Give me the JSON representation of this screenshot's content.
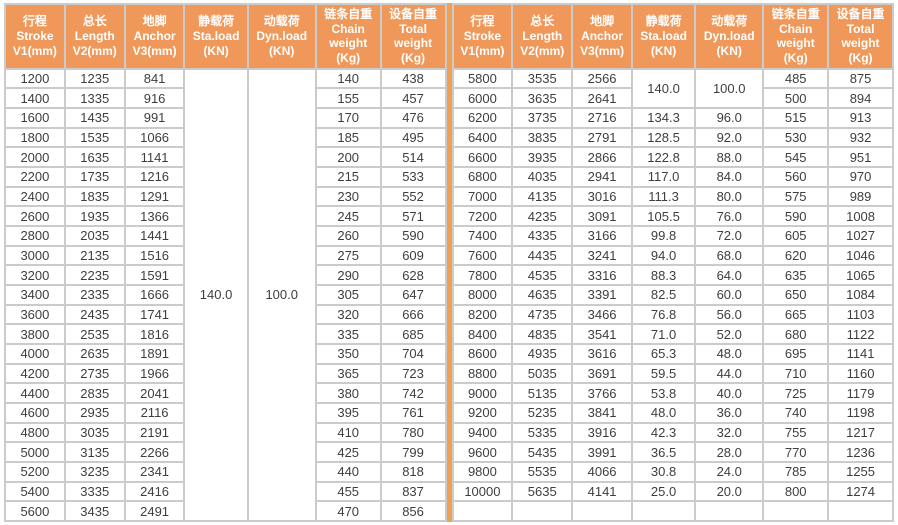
{
  "colors": {
    "header_bg": "#F0985A",
    "header_text": "#FFFFFF",
    "grid": "#CBCBCB",
    "cell_bg": "#FFFFFF",
    "divider": "#F0A052",
    "data_text": "#3E3E3E",
    "page_bg": "#FFFFFF"
  },
  "table": {
    "columns": [
      {
        "key": "stroke",
        "lines": [
          "行程",
          "Stroke",
          "V1(mm)"
        ]
      },
      {
        "key": "length",
        "lines": [
          "总长",
          "Length",
          "V2(mm)"
        ]
      },
      {
        "key": "anchor",
        "lines": [
          "地脚",
          "Anchor",
          "V3(mm)"
        ]
      },
      {
        "key": "sta_load",
        "lines": [
          "静载荷",
          "Sta.load",
          "(KN)"
        ]
      },
      {
        "key": "dyn_load",
        "lines": [
          "动载荷",
          "Dyn.load",
          "(KN)"
        ]
      },
      {
        "key": "chain_weight",
        "lines": [
          "链条自重",
          "Chain",
          "weight",
          "(Kg)"
        ]
      },
      {
        "key": "total_weight",
        "lines": [
          "设备自重",
          "Total",
          "weight",
          "(Kg)"
        ]
      }
    ],
    "left": {
      "merged_sta_load": "140.0",
      "merged_dyn_load": "100.0",
      "rows": [
        [
          "1200",
          "1235",
          "841",
          "140",
          "438"
        ],
        [
          "1400",
          "1335",
          "916",
          "155",
          "457"
        ],
        [
          "1600",
          "1435",
          "991",
          "170",
          "476"
        ],
        [
          "1800",
          "1535",
          "1066",
          "185",
          "495"
        ],
        [
          "2000",
          "1635",
          "1141",
          "200",
          "514"
        ],
        [
          "2200",
          "1735",
          "1216",
          "215",
          "533"
        ],
        [
          "2400",
          "1835",
          "1291",
          "230",
          "552"
        ],
        [
          "2600",
          "1935",
          "1366",
          "245",
          "571"
        ],
        [
          "2800",
          "2035",
          "1441",
          "260",
          "590"
        ],
        [
          "3000",
          "2135",
          "1516",
          "275",
          "609"
        ],
        [
          "3200",
          "2235",
          "1591",
          "290",
          "628"
        ],
        [
          "3400",
          "2335",
          "1666",
          "305",
          "647"
        ],
        [
          "3600",
          "2435",
          "1741",
          "320",
          "666"
        ],
        [
          "3800",
          "2535",
          "1816",
          "335",
          "685"
        ],
        [
          "4000",
          "2635",
          "1891",
          "350",
          "704"
        ],
        [
          "4200",
          "2735",
          "1966",
          "365",
          "723"
        ],
        [
          "4400",
          "2835",
          "2041",
          "380",
          "742"
        ],
        [
          "4600",
          "2935",
          "2116",
          "395",
          "761"
        ],
        [
          "4800",
          "3035",
          "2191",
          "410",
          "780"
        ],
        [
          "5000",
          "3135",
          "2266",
          "425",
          "799"
        ],
        [
          "5200",
          "3235",
          "2341",
          "440",
          "818"
        ],
        [
          "5400",
          "3335",
          "2416",
          "455",
          "837"
        ],
        [
          "5600",
          "3435",
          "2491",
          "470",
          "856"
        ]
      ]
    },
    "right": {
      "merged_sta_load": "140.0",
      "merged_dyn_load": "100.0",
      "merged_row_span": 2,
      "trailing_empty_row": true,
      "rows": [
        [
          "5800",
          "3535",
          "2566",
          "",
          "",
          "485",
          "875"
        ],
        [
          "6000",
          "3635",
          "2641",
          "",
          "",
          "500",
          "894"
        ],
        [
          "6200",
          "3735",
          "2716",
          "134.3",
          "96.0",
          "515",
          "913"
        ],
        [
          "6400",
          "3835",
          "2791",
          "128.5",
          "92.0",
          "530",
          "932"
        ],
        [
          "6600",
          "3935",
          "2866",
          "122.8",
          "88.0",
          "545",
          "951"
        ],
        [
          "6800",
          "4035",
          "2941",
          "117.0",
          "84.0",
          "560",
          "970"
        ],
        [
          "7000",
          "4135",
          "3016",
          "111.3",
          "80.0",
          "575",
          "989"
        ],
        [
          "7200",
          "4235",
          "3091",
          "105.5",
          "76.0",
          "590",
          "1008"
        ],
        [
          "7400",
          "4335",
          "3166",
          "99.8",
          "72.0",
          "605",
          "1027"
        ],
        [
          "7600",
          "4435",
          "3241",
          "94.0",
          "68.0",
          "620",
          "1046"
        ],
        [
          "7800",
          "4535",
          "3316",
          "88.3",
          "64.0",
          "635",
          "1065"
        ],
        [
          "8000",
          "4635",
          "3391",
          "82.5",
          "60.0",
          "650",
          "1084"
        ],
        [
          "8200",
          "4735",
          "3466",
          "76.8",
          "56.0",
          "665",
          "1103"
        ],
        [
          "8400",
          "4835",
          "3541",
          "71.0",
          "52.0",
          "680",
          "1122"
        ],
        [
          "8600",
          "4935",
          "3616",
          "65.3",
          "48.0",
          "695",
          "1141"
        ],
        [
          "8800",
          "5035",
          "3691",
          "59.5",
          "44.0",
          "710",
          "1160"
        ],
        [
          "9000",
          "5135",
          "3766",
          "53.8",
          "40.0",
          "725",
          "1179"
        ],
        [
          "9200",
          "5235",
          "3841",
          "48.0",
          "36.0",
          "740",
          "1198"
        ],
        [
          "9400",
          "5335",
          "3916",
          "42.3",
          "32.0",
          "755",
          "1217"
        ],
        [
          "9600",
          "5435",
          "3991",
          "36.5",
          "28.0",
          "770",
          "1236"
        ],
        [
          "9800",
          "5535",
          "4066",
          "30.8",
          "24.0",
          "785",
          "1255"
        ],
        [
          "10000",
          "5635",
          "4141",
          "25.0",
          "20.0",
          "800",
          "1274"
        ]
      ]
    }
  }
}
